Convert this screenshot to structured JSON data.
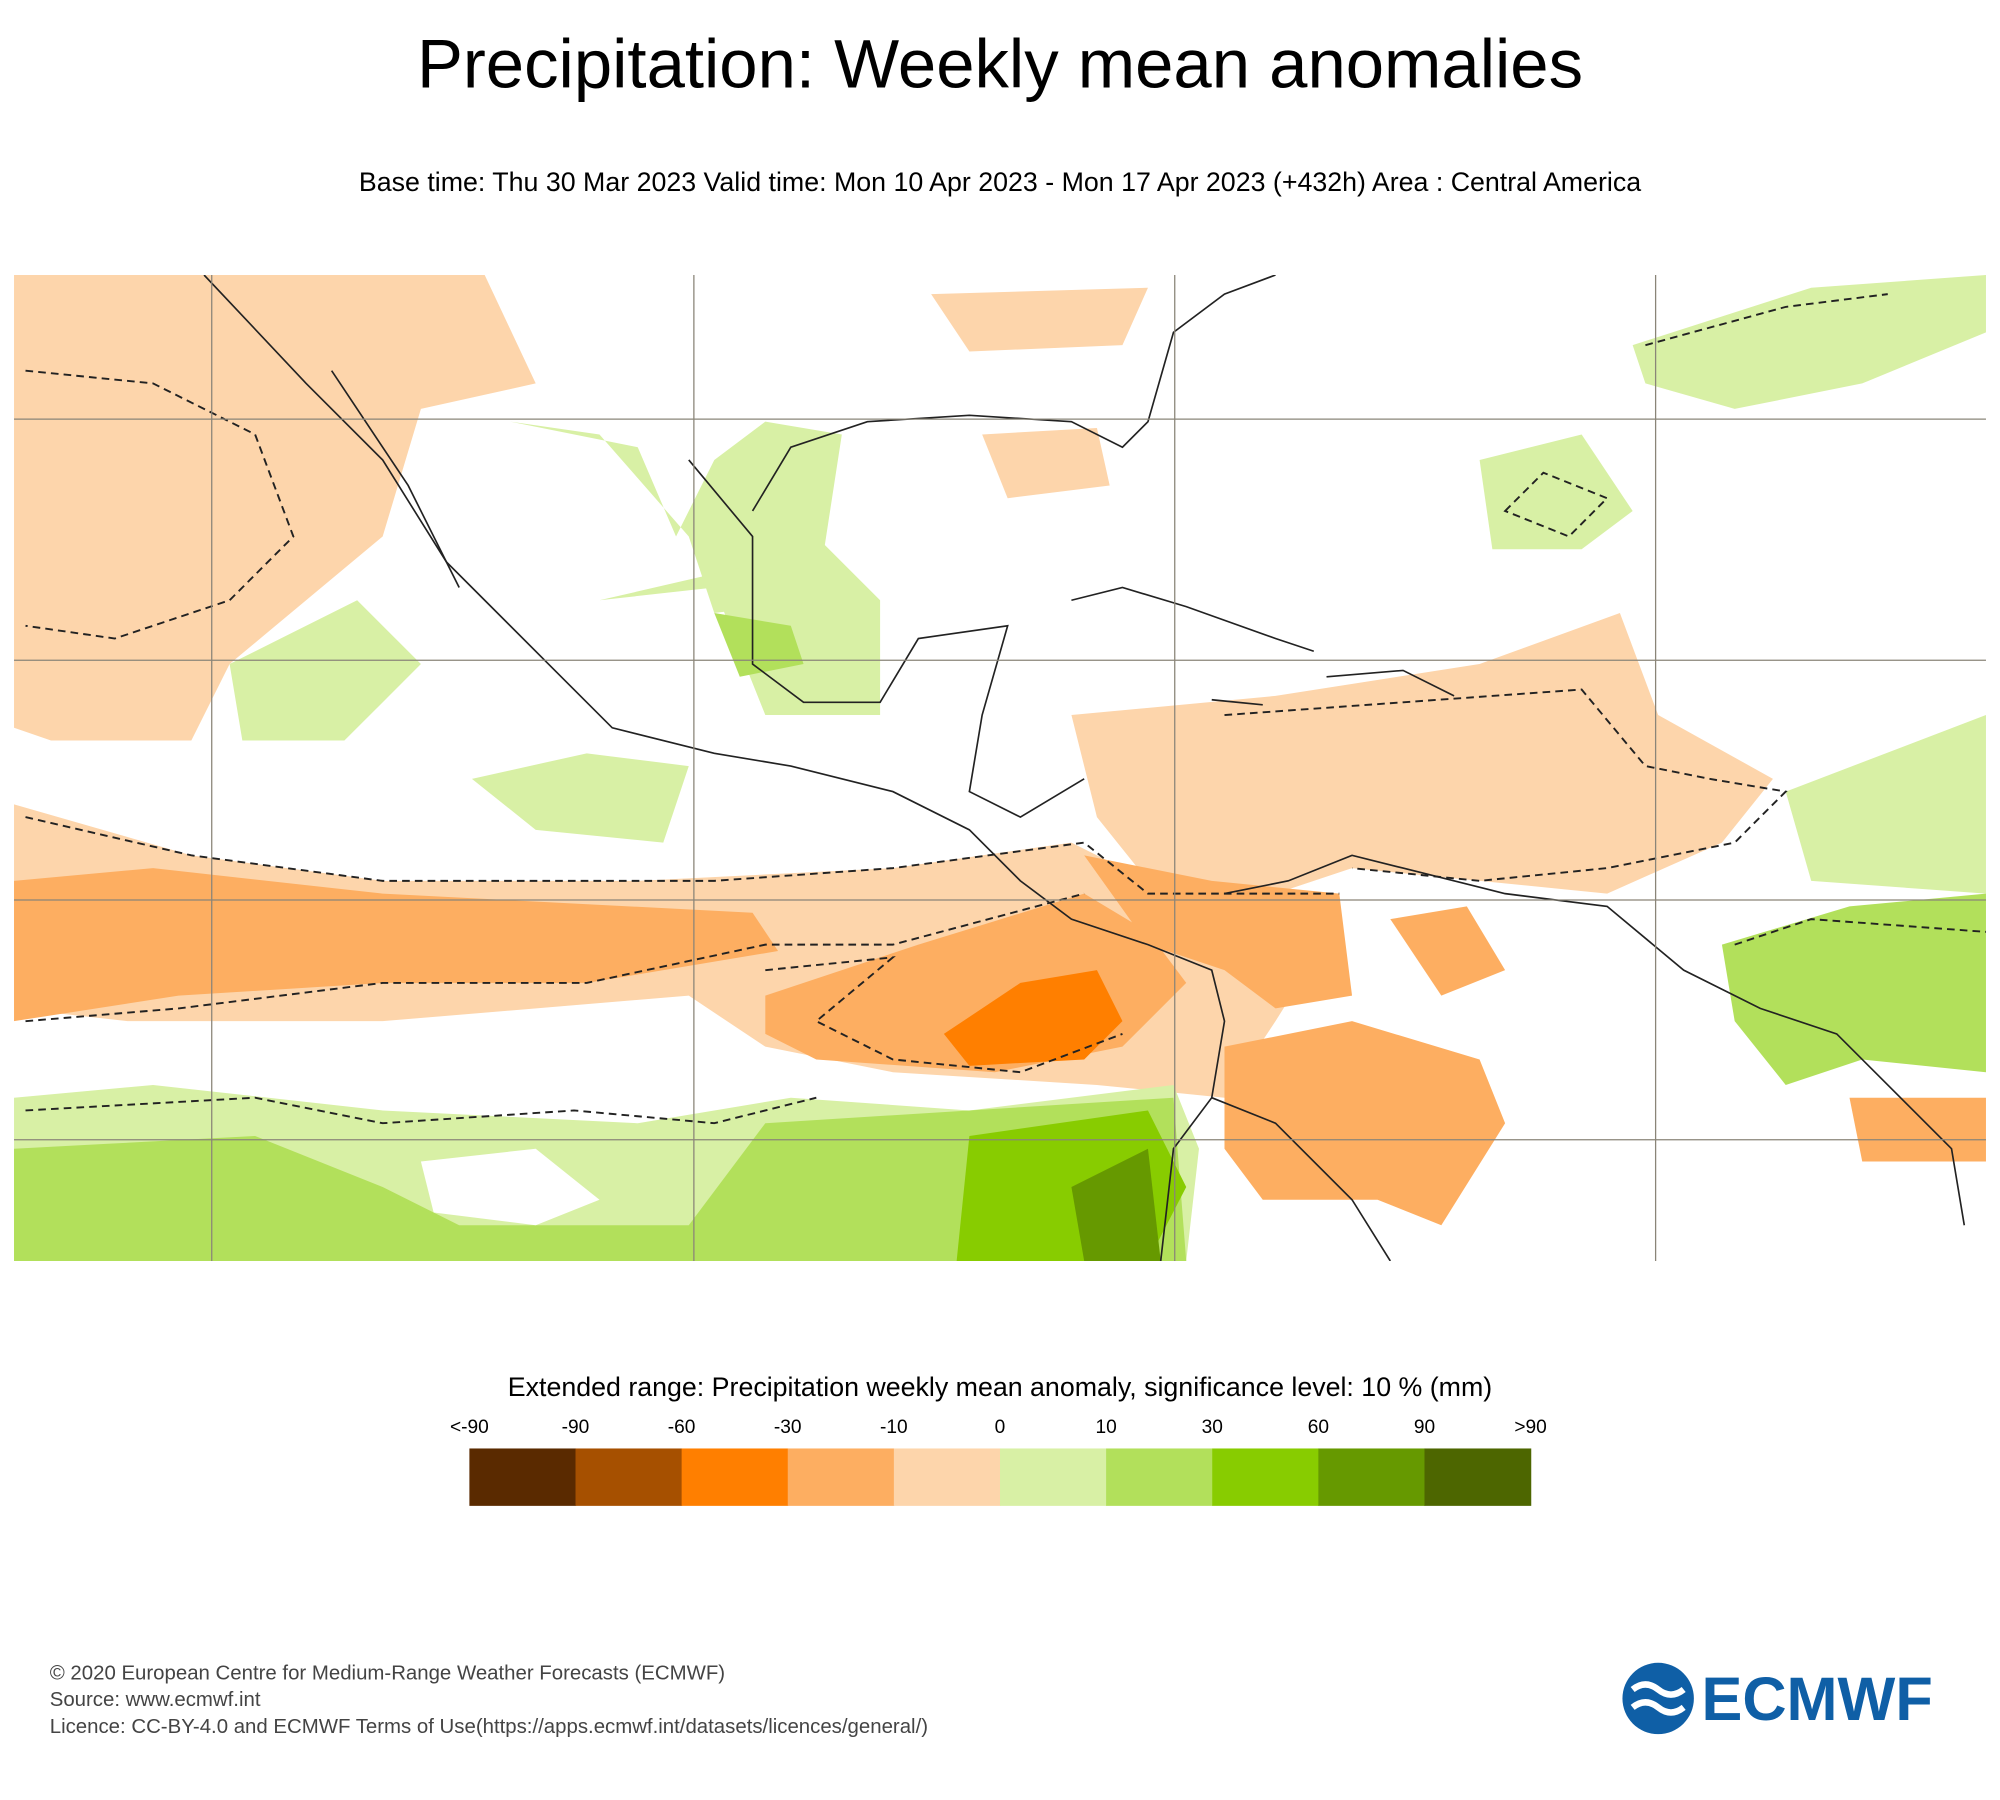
{
  "header": {
    "title": "Precipitation: Weekly mean anomalies",
    "subtitle": "Base time: Thu 30 Mar 2023 Valid time: Mon 10 Apr 2023 - Mon 17 Apr 2023 (+432h) Area : Central America"
  },
  "legend": {
    "title": "Extended range: Precipitation weekly mean anomaly, significance level: 10 % (mm)",
    "labels": [
      "<-90",
      "-90",
      "-60",
      "-30",
      "-10",
      "0",
      "10",
      "30",
      "60",
      "90",
      ">90"
    ],
    "colors": [
      "#5a2a00",
      "#a65000",
      "#ff7f00",
      "#fdae61",
      "#fdd5ab",
      "#d8f0a5",
      "#b2e05b",
      "#88cc00",
      "#669900",
      "#4d6600"
    ]
  },
  "footer": {
    "lines": [
      "© 2020 European Centre for Medium-Range Weather Forecasts (ECMWF)",
      "Source: www.ecmwf.int",
      "Licence: CC-BY-4.0 and ECMWF Terms of Use(https://apps.ecmwf.int/datasets/licences/general/)"
    ],
    "logo": "ECMWF"
  }
}
